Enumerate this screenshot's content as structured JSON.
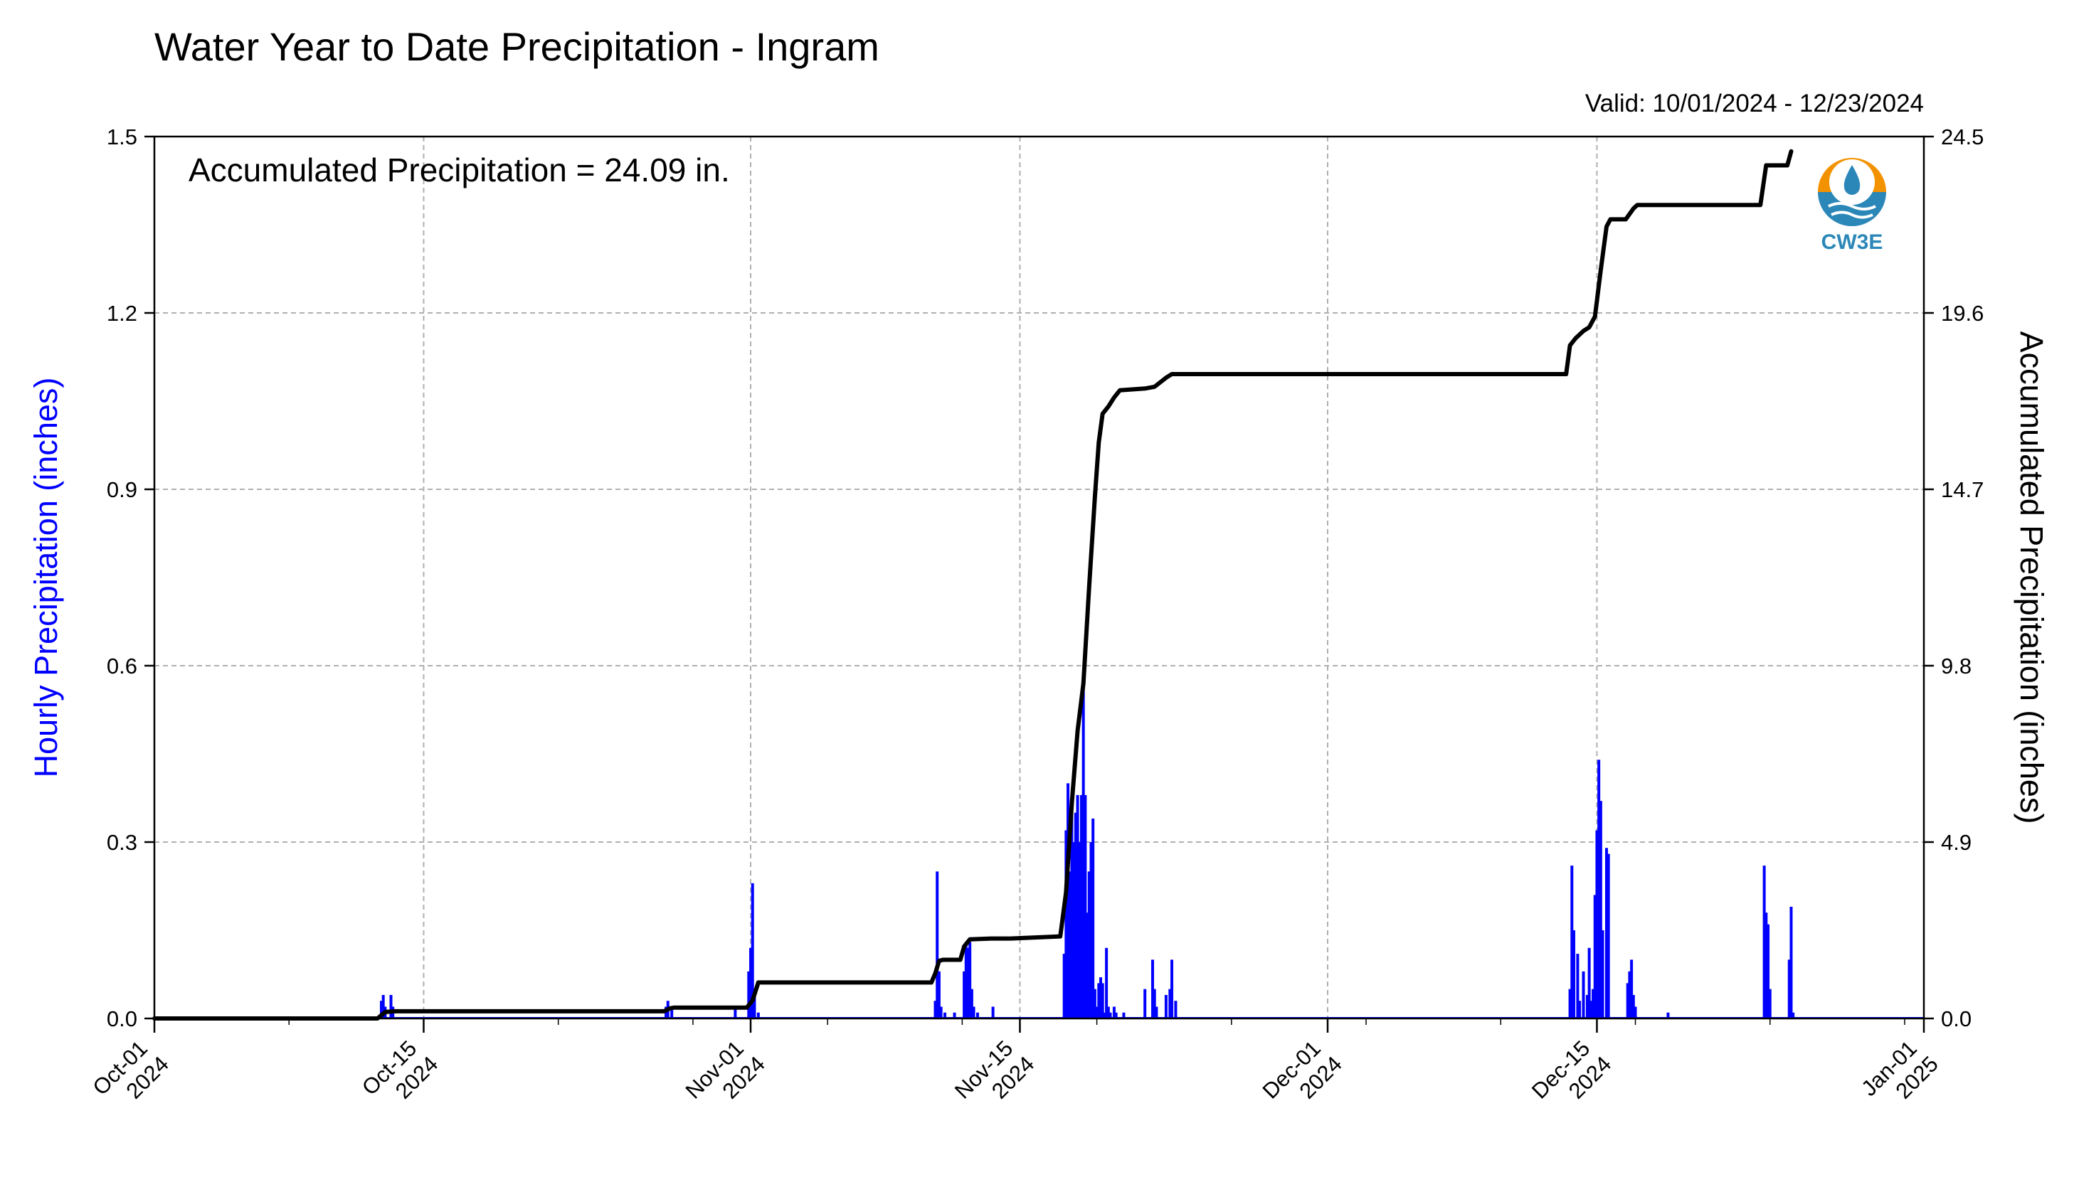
{
  "chart_data": {
    "type": "bar",
    "title": "Water Year to Date Precipitation - Ingram",
    "valid": "Valid: 10/01/2024 - 12/23/2024",
    "annotation": "Accumulated Precipitation = 24.09 in.",
    "ylabel_left": "Hourly Precipitation (inches)",
    "ylabel_right": "Accumulated Precipitation (inches)",
    "xlim": [
      "2024-10-01",
      "2025-01-01"
    ],
    "ylim_left": [
      0,
      1.5
    ],
    "ylim_right": [
      0,
      24.5
    ],
    "left_ticks": [
      "0.0",
      "0.3",
      "0.6",
      "0.9",
      "1.2",
      "1.5"
    ],
    "right_ticks": [
      "0.0",
      "4.9",
      "9.8",
      "14.7",
      "19.6",
      "24.5"
    ],
    "x_ticks": [
      {
        "date": "2024-10-01",
        "line1": "Oct-01",
        "line2": "2024"
      },
      {
        "date": "2024-10-15",
        "line1": "Oct-15",
        "line2": "2024"
      },
      {
        "date": "2024-11-01",
        "line1": "Nov-01",
        "line2": "2024"
      },
      {
        "date": "2024-11-15",
        "line1": "Nov-15",
        "line2": "2024"
      },
      {
        "date": "2024-12-01",
        "line1": "Dec-01",
        "line2": "2024"
      },
      {
        "date": "2024-12-15",
        "line1": "Dec-15",
        "line2": "2024"
      },
      {
        "date": "2025-01-01",
        "line1": "Jan-01",
        "line2": "2025"
      }
    ],
    "grid": true,
    "colors": {
      "hourly": "#0000ff",
      "accumulated": "#000000",
      "grid": "#b0b0b0"
    },
    "series": [
      {
        "name": "Hourly Precipitation (inches)",
        "type": "bar",
        "x": [
          11.8,
          11.9,
          12.0,
          12.3,
          12.4,
          26.6,
          26.7,
          26.9,
          30.2,
          30.9,
          31.0,
          31.1,
          31.2,
          31.4,
          40.6,
          40.7,
          40.8,
          40.9,
          41.1,
          41.6,
          42.1,
          42.2,
          42.3,
          42.4,
          42.5,
          42.6,
          42.8,
          43.6,
          47.3,
          47.4,
          47.5,
          47.6,
          47.7,
          47.8,
          47.9,
          48.0,
          48.1,
          48.2,
          48.3,
          48.4,
          48.5,
          48.6,
          48.7,
          48.8,
          48.9,
          49.0,
          49.1,
          49.2,
          49.3,
          49.4,
          49.5,
          49.6,
          49.7,
          49.9,
          50.0,
          50.4,
          51.5,
          51.9,
          52.0,
          52.1,
          52.6,
          52.8,
          52.9,
          53.1,
          73.6,
          73.7,
          73.8,
          74.0,
          74.1,
          74.3,
          74.5,
          74.6,
          74.7,
          74.8,
          74.9,
          75.0,
          75.1,
          75.2,
          75.3,
          75.5,
          75.6,
          76.6,
          76.7,
          76.8,
          76.9,
          77.0,
          78.7,
          83.7,
          83.8,
          83.9,
          84.0,
          85.0,
          85.1,
          85.2
        ],
        "values": [
          0.03,
          0.04,
          0.02,
          0.04,
          0.02,
          0.02,
          0.03,
          0.02,
          0.02,
          0.08,
          0.12,
          0.23,
          0.04,
          0.01,
          0.03,
          0.25,
          0.08,
          0.02,
          0.01,
          0.01,
          0.08,
          0.13,
          0.12,
          0.13,
          0.05,
          0.02,
          0.01,
          0.02,
          0.11,
          0.32,
          0.4,
          0.25,
          0.36,
          0.3,
          0.35,
          0.38,
          0.3,
          0.38,
          0.57,
          0.38,
          0.18,
          0.25,
          0.3,
          0.34,
          0.05,
          0.02,
          0.06,
          0.07,
          0.06,
          0.01,
          0.12,
          0.02,
          0.01,
          0.02,
          0.01,
          0.01,
          0.05,
          0.1,
          0.05,
          0.02,
          0.04,
          0.05,
          0.1,
          0.03,
          0.05,
          0.26,
          0.15,
          0.11,
          0.03,
          0.08,
          0.04,
          0.12,
          0.03,
          0.05,
          0.21,
          0.32,
          0.44,
          0.37,
          0.15,
          0.29,
          0.28,
          0.06,
          0.08,
          0.1,
          0.04,
          0.02,
          0.01,
          0.26,
          0.18,
          0.16,
          0.05,
          0.1,
          0.19,
          0.01
        ]
      },
      {
        "name": "Accumulated Precipitation (inches)",
        "type": "line",
        "x": [
          0,
          11.6,
          12.0,
          12.5,
          26.5,
          26.8,
          27.0,
          30.8,
          31.1,
          31.4,
          40.4,
          40.6,
          40.8,
          41.0,
          41.9,
          42.1,
          42.4,
          43.5,
          44.5,
          47.1,
          47.4,
          47.7,
          48.0,
          48.3,
          48.6,
          48.9,
          49.1,
          49.3,
          49.6,
          49.9,
          50.2,
          51.5,
          52.0,
          52.6,
          52.9,
          53.1,
          73.4,
          73.6,
          73.9,
          74.3,
          74.6,
          74.9,
          75.2,
          75.3,
          75.5,
          75.7,
          76.5,
          76.9,
          77.1,
          83.5,
          83.8,
          84.9,
          85.1
        ],
        "values": [
          0.0,
          0.0,
          0.18,
          0.2,
          0.2,
          0.28,
          0.3,
          0.3,
          0.5,
          1.0,
          1.0,
          1.25,
          1.6,
          1.63,
          1.63,
          2.0,
          2.2,
          2.22,
          2.22,
          2.28,
          3.5,
          6.0,
          8.0,
          9.3,
          12.0,
          14.5,
          16.0,
          16.8,
          17.0,
          17.25,
          17.45,
          17.5,
          17.55,
          17.8,
          17.9,
          17.9,
          17.9,
          18.7,
          18.9,
          19.1,
          19.2,
          19.5,
          20.8,
          21.2,
          22.0,
          22.2,
          22.2,
          22.5,
          22.6,
          22.6,
          23.7,
          23.7,
          24.09
        ]
      }
    ]
  },
  "logo": {
    "text": "CW3E",
    "colors": {
      "orange": "#f39200",
      "blue": "#2b87b8",
      "dark": "#1c5f8c"
    }
  }
}
